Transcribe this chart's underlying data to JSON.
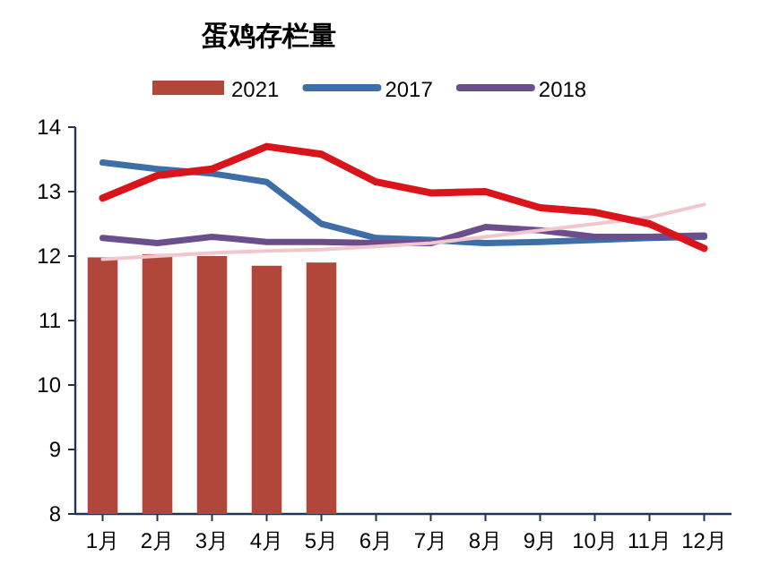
{
  "chart_data": {
    "type": "bar",
    "title": "蛋鸡存栏量",
    "categories": [
      "1月",
      "2月",
      "3月",
      "4月",
      "5月",
      "6月",
      "7月",
      "8月",
      "9月",
      "10月",
      "11月",
      "12月"
    ],
    "series": [
      {
        "name": "2021",
        "color": "#b0473a",
        "values": [
          11.98,
          12.03,
          12.0,
          11.85,
          11.9,
          null,
          null,
          null,
          null,
          null,
          null,
          null
        ]
      },
      {
        "name": "2017",
        "type": "line",
        "color": "#3d6ea8",
        "values": [
          13.45,
          13.35,
          13.28,
          13.15,
          12.5,
          12.28,
          12.25,
          12.2,
          12.22,
          12.25,
          12.28,
          12.3
        ]
      },
      {
        "name": "2018",
        "type": "line",
        "color": "#6a4f8c",
        "values": [
          12.28,
          12.2,
          12.3,
          12.22,
          12.22,
          12.2,
          12.2,
          12.45,
          12.4,
          12.3,
          12.3,
          12.32
        ]
      },
      {
        "type": "line",
        "color": "#f1c6cc",
        "values": [
          11.95,
          12.0,
          12.05,
          12.08,
          12.1,
          12.15,
          12.2,
          12.3,
          12.4,
          12.5,
          12.6,
          12.8
        ]
      },
      {
        "type": "line",
        "color": "#d9141b",
        "values": [
          12.9,
          13.25,
          13.35,
          13.7,
          13.58,
          13.15,
          12.98,
          13.0,
          12.75,
          12.68,
          12.5,
          12.12
        ]
      }
    ],
    "ylim": [
      8,
      14
    ],
    "yticks": [
      8,
      9,
      10,
      11,
      12,
      13,
      14
    ],
    "legend": "top",
    "grid": false,
    "marker": "none",
    "line_style": "solid"
  }
}
